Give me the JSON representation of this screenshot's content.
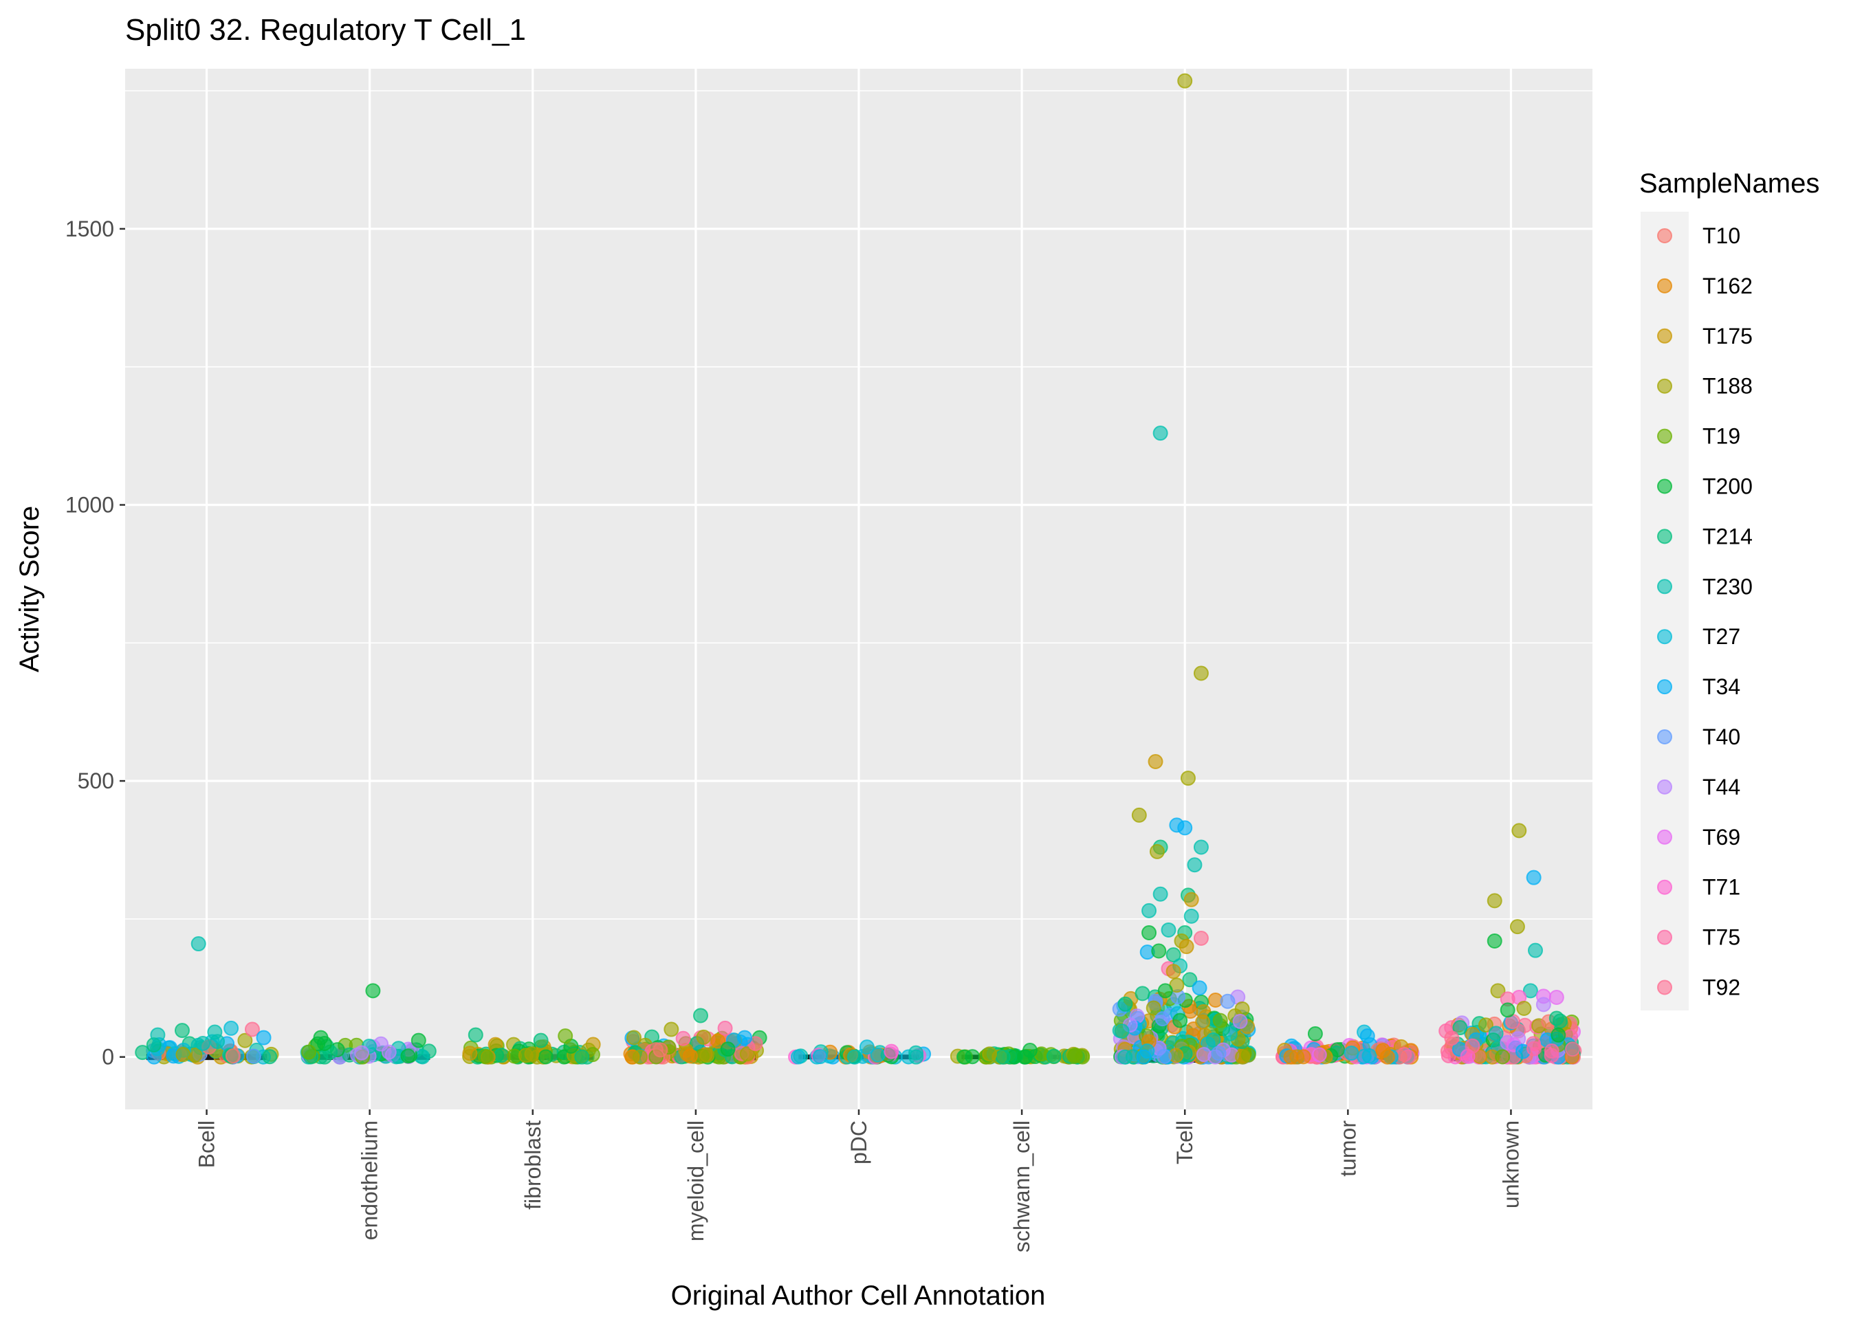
{
  "chart_data": {
    "type": "scatter",
    "subtype": "jitter-over-violin",
    "title": "Split0 32. Regulatory T Cell_1",
    "xlabel": "Original Author Cell Annotation",
    "ylabel": "Activity Score",
    "ylim": [
      -95,
      1790
    ],
    "yticks": [
      0,
      500,
      1000,
      1500
    ],
    "grid": true,
    "legend_placement": "right",
    "categories": [
      "Bcell",
      "endothelium",
      "fibroblast",
      "myeloid_cell",
      "pDC",
      "schwann_cell",
      "Tcell",
      "tumor",
      "unknown"
    ],
    "legend": {
      "title": "SampleNames",
      "entries": [
        {
          "name": "T10",
          "color": "#F8766D"
        },
        {
          "name": "T162",
          "color": "#E58700"
        },
        {
          "name": "T175",
          "color": "#C99800"
        },
        {
          "name": "T188",
          "color": "#A3A500"
        },
        {
          "name": "T19",
          "color": "#6BB100"
        },
        {
          "name": "T200",
          "color": "#00BA38"
        },
        {
          "name": "T214",
          "color": "#00BF7D"
        },
        {
          "name": "T230",
          "color": "#00C0AF"
        },
        {
          "name": "T27",
          "color": "#00BCD8"
        },
        {
          "name": "T34",
          "color": "#00B0F6"
        },
        {
          "name": "T40",
          "color": "#619CFF"
        },
        {
          "name": "T44",
          "color": "#B983FF"
        },
        {
          "name": "T69",
          "color": "#E76BF3"
        },
        {
          "name": "T71",
          "color": "#FD61D1"
        },
        {
          "name": "T75",
          "color": "#FF67A4"
        },
        {
          "name": "T92",
          "color": "#FF6C91"
        }
      ]
    },
    "outliers": [
      {
        "category": "Bcell",
        "offset": -0.05,
        "y": 205,
        "sample": "T230"
      },
      {
        "category": "Bcell",
        "offset": -0.3,
        "y": 40,
        "sample": "T230"
      },
      {
        "category": "Bcell",
        "offset": -0.15,
        "y": 48,
        "sample": "T214"
      },
      {
        "category": "Bcell",
        "offset": 0.05,
        "y": 45,
        "sample": "T230"
      },
      {
        "category": "Bcell",
        "offset": 0.15,
        "y": 52,
        "sample": "T27"
      },
      {
        "category": "Bcell",
        "offset": 0.28,
        "y": 50,
        "sample": "T92"
      },
      {
        "category": "Bcell",
        "offset": 0.35,
        "y": 35,
        "sample": "T34"
      },
      {
        "category": "endothelium",
        "offset": 0.02,
        "y": 120,
        "sample": "T200"
      },
      {
        "category": "endothelium",
        "offset": -0.3,
        "y": 35,
        "sample": "T200"
      },
      {
        "category": "endothelium",
        "offset": 0.3,
        "y": 30,
        "sample": "T200"
      },
      {
        "category": "fibroblast",
        "offset": -0.35,
        "y": 40,
        "sample": "T214"
      },
      {
        "category": "fibroblast",
        "offset": 0.2,
        "y": 38,
        "sample": "T19"
      },
      {
        "category": "fibroblast",
        "offset": 0.05,
        "y": 30,
        "sample": "T214"
      },
      {
        "category": "myeloid_cell",
        "offset": 0.03,
        "y": 75,
        "sample": "T214"
      },
      {
        "category": "myeloid_cell",
        "offset": -0.15,
        "y": 50,
        "sample": "T188"
      },
      {
        "category": "myeloid_cell",
        "offset": 0.18,
        "y": 52,
        "sample": "T75"
      },
      {
        "category": "myeloid_cell",
        "offset": 0.3,
        "y": 35,
        "sample": "T34"
      },
      {
        "category": "pDC",
        "offset": 0.05,
        "y": 18,
        "sample": "T27"
      },
      {
        "category": "pDC",
        "offset": 0.2,
        "y": 10,
        "sample": "T71"
      },
      {
        "category": "schwann_cell",
        "offset": 0.05,
        "y": 12,
        "sample": "T200"
      },
      {
        "category": "Tcell",
        "offset": 0.0,
        "y": 1768,
        "sample": "T188"
      },
      {
        "category": "Tcell",
        "offset": -0.15,
        "y": 1130,
        "sample": "T230"
      },
      {
        "category": "Tcell",
        "offset": 0.1,
        "y": 695,
        "sample": "T188"
      },
      {
        "category": "Tcell",
        "offset": -0.18,
        "y": 535,
        "sample": "T175"
      },
      {
        "category": "Tcell",
        "offset": 0.02,
        "y": 505,
        "sample": "T188"
      },
      {
        "category": "Tcell",
        "offset": -0.28,
        "y": 438,
        "sample": "T188"
      },
      {
        "category": "Tcell",
        "offset": -0.05,
        "y": 420,
        "sample": "T34"
      },
      {
        "category": "Tcell",
        "offset": 0.0,
        "y": 415,
        "sample": "T34"
      },
      {
        "category": "Tcell",
        "offset": 0.1,
        "y": 380,
        "sample": "T230"
      },
      {
        "category": "Tcell",
        "offset": -0.15,
        "y": 380,
        "sample": "T214"
      },
      {
        "category": "Tcell",
        "offset": -0.17,
        "y": 372,
        "sample": "T188"
      },
      {
        "category": "Tcell",
        "offset": 0.06,
        "y": 348,
        "sample": "T230"
      },
      {
        "category": "Tcell",
        "offset": -0.15,
        "y": 295,
        "sample": "T230"
      },
      {
        "category": "Tcell",
        "offset": 0.02,
        "y": 293,
        "sample": "T214"
      },
      {
        "category": "Tcell",
        "offset": 0.04,
        "y": 285,
        "sample": "T175"
      },
      {
        "category": "Tcell",
        "offset": -0.22,
        "y": 265,
        "sample": "T230"
      },
      {
        "category": "Tcell",
        "offset": 0.04,
        "y": 255,
        "sample": "T230"
      },
      {
        "category": "Tcell",
        "offset": -0.1,
        "y": 230,
        "sample": "T230"
      },
      {
        "category": "Tcell",
        "offset": -0.22,
        "y": 225,
        "sample": "T200"
      },
      {
        "category": "Tcell",
        "offset": 0.0,
        "y": 225,
        "sample": "T214"
      },
      {
        "category": "Tcell",
        "offset": 0.1,
        "y": 215,
        "sample": "T92"
      },
      {
        "category": "Tcell",
        "offset": -0.02,
        "y": 210,
        "sample": "T188"
      },
      {
        "category": "Tcell",
        "offset": 0.01,
        "y": 200,
        "sample": "T175"
      },
      {
        "category": "Tcell",
        "offset": -0.23,
        "y": 190,
        "sample": "T34"
      },
      {
        "category": "Tcell",
        "offset": -0.16,
        "y": 192,
        "sample": "T200"
      },
      {
        "category": "Tcell",
        "offset": -0.07,
        "y": 185,
        "sample": "T214"
      },
      {
        "category": "Tcell",
        "offset": -0.1,
        "y": 160,
        "sample": "T75"
      },
      {
        "category": "Tcell",
        "offset": -0.03,
        "y": 165,
        "sample": "T230"
      },
      {
        "category": "Tcell",
        "offset": -0.07,
        "y": 155,
        "sample": "T175"
      },
      {
        "category": "Tcell",
        "offset": 0.03,
        "y": 140,
        "sample": "T214"
      },
      {
        "category": "Tcell",
        "offset": -0.05,
        "y": 130,
        "sample": "T188"
      },
      {
        "category": "Tcell",
        "offset": 0.09,
        "y": 125,
        "sample": "T34"
      },
      {
        "category": "Tcell",
        "offset": -0.12,
        "y": 120,
        "sample": "T200"
      },
      {
        "category": "Tcell",
        "offset": -0.26,
        "y": 115,
        "sample": "T214"
      },
      {
        "category": "tumor",
        "offset": -0.2,
        "y": 42,
        "sample": "T200"
      },
      {
        "category": "tumor",
        "offset": 0.1,
        "y": 45,
        "sample": "T27"
      },
      {
        "category": "tumor",
        "offset": 0.12,
        "y": 38,
        "sample": "T34"
      },
      {
        "category": "unknown",
        "offset": 0.05,
        "y": 410,
        "sample": "T188"
      },
      {
        "category": "unknown",
        "offset": 0.14,
        "y": 325,
        "sample": "T34"
      },
      {
        "category": "unknown",
        "offset": -0.1,
        "y": 283,
        "sample": "T188"
      },
      {
        "category": "unknown",
        "offset": 0.04,
        "y": 236,
        "sample": "T188"
      },
      {
        "category": "unknown",
        "offset": -0.1,
        "y": 210,
        "sample": "T200"
      },
      {
        "category": "unknown",
        "offset": 0.15,
        "y": 193,
        "sample": "T230"
      },
      {
        "category": "unknown",
        "offset": -0.08,
        "y": 120,
        "sample": "T188"
      },
      {
        "category": "unknown",
        "offset": 0.12,
        "y": 120,
        "sample": "T230"
      },
      {
        "category": "unknown",
        "offset": 0.2,
        "y": 110,
        "sample": "T69"
      },
      {
        "category": "unknown",
        "offset": 0.05,
        "y": 108,
        "sample": "T71"
      },
      {
        "category": "unknown",
        "offset": -0.02,
        "y": 105,
        "sample": "T75"
      },
      {
        "category": "unknown",
        "offset": 0.28,
        "y": 108,
        "sample": "T69"
      },
      {
        "category": "unknown",
        "offset": 0.2,
        "y": 95,
        "sample": "T44"
      },
      {
        "category": "unknown",
        "offset": -0.02,
        "y": 85,
        "sample": "T200"
      },
      {
        "category": "unknown",
        "offset": 0.08,
        "y": 88,
        "sample": "T188"
      },
      {
        "category": "unknown",
        "offset": 0.28,
        "y": 70,
        "sample": "T214"
      }
    ],
    "bulk": [
      {
        "category": "Bcell",
        "max": 30,
        "count": 60,
        "samples": [
          "T27",
          "T230",
          "T214",
          "T34",
          "T40",
          "T10",
          "T188",
          "T175"
        ]
      },
      {
        "category": "endothelium",
        "max": 25,
        "count": 55,
        "samples": [
          "T200",
          "T214",
          "T19",
          "T230",
          "T44"
        ]
      },
      {
        "category": "fibroblast",
        "max": 25,
        "count": 60,
        "samples": [
          "T19",
          "T200",
          "T214",
          "T188",
          "T175"
        ]
      },
      {
        "category": "myeloid_cell",
        "max": 38,
        "count": 110,
        "samples": [
          "T162",
          "T175",
          "T188",
          "T19",
          "T200",
          "T214",
          "T10",
          "T92",
          "T75",
          "T34"
        ]
      },
      {
        "category": "pDC",
        "max": 10,
        "count": 40,
        "samples": [
          "T27",
          "T34",
          "T200",
          "T162",
          "T230",
          "T71"
        ]
      },
      {
        "category": "schwann_cell",
        "max": 6,
        "count": 60,
        "samples": [
          "T200",
          "T19",
          "T188",
          "T214"
        ]
      },
      {
        "category": "Tcell",
        "max": 110,
        "count": 260,
        "samples": [
          "T34",
          "T40",
          "T27",
          "T200",
          "T214",
          "T230",
          "T188",
          "T175",
          "T19",
          "T44",
          "T162"
        ]
      },
      {
        "category": "tumor",
        "max": 22,
        "count": 110,
        "samples": [
          "T10",
          "T75",
          "T92",
          "T34",
          "T27",
          "T69",
          "T71",
          "T162",
          "T200",
          "T175"
        ]
      },
      {
        "category": "unknown",
        "max": 65,
        "count": 180,
        "samples": [
          "T188",
          "T19",
          "T200",
          "T214",
          "T230",
          "T44",
          "T69",
          "T71",
          "T75",
          "T92",
          "T10",
          "T162",
          "T175",
          "T34"
        ]
      }
    ]
  }
}
